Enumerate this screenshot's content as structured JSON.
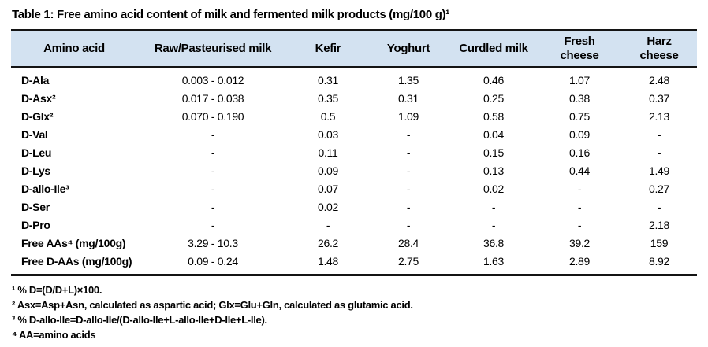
{
  "title": "Table 1: Free amino acid content of milk and fermented milk products (mg/100 g)¹",
  "table": {
    "columns": [
      "Amino acid",
      "Raw/Pasteurised milk",
      "Kefir",
      "Yoghurt",
      "Curdled milk",
      "Fresh\ncheese",
      "Harz\ncheese"
    ],
    "rows": [
      [
        "D-Ala",
        "0.003 - 0.012",
        "0.31",
        "1.35",
        "0.46",
        "1.07",
        "2.48"
      ],
      [
        "D-Asx²",
        "0.017 - 0.038",
        "0.35",
        "0.31",
        "0.25",
        "0.38",
        "0.37"
      ],
      [
        "D-Glx²",
        "0.070 - 0.190",
        "0.5",
        "1.09",
        "0.58",
        "0.75",
        "2.13"
      ],
      [
        "D-Val",
        "-",
        "0.03",
        "-",
        "0.04",
        "0.09",
        "-"
      ],
      [
        "D-Leu",
        "-",
        "0.11",
        "-",
        "0.15",
        "0.16",
        "-"
      ],
      [
        "D-Lys",
        "-",
        "0.09",
        "-",
        "0.13",
        "0.44",
        "1.49"
      ],
      [
        "D-allo-Ile³",
        "-",
        "0.07",
        "-",
        "0.02",
        "-",
        "0.27"
      ],
      [
        "D-Ser",
        "-",
        "0.02",
        "-",
        "-",
        "-",
        "-"
      ],
      [
        "D-Pro",
        "-",
        "-",
        "-",
        "-",
        "-",
        "2.18"
      ],
      [
        "Free AAs⁴ (mg/100g)",
        "3.29 - 10.3",
        "26.2",
        "28.4",
        "36.8",
        "39.2",
        "159"
      ],
      [
        "Free D-AAs (mg/100g)",
        "0.09 - 0.24",
        "1.48",
        "2.75",
        "1.63",
        "2.89",
        "8.92"
      ]
    ]
  },
  "footnotes": [
    "¹ % D=(D/D+L)×100.",
    "² Asx=Asp+Asn, calculated as aspartic acid; Glx=Glu+Gln, calculated as glutamic acid.",
    "³ % D-allo-Ile=D-allo-Ile/(D-allo-Ile+L-allo-Ile+D-Ile+L-Ile).",
    "⁴ AA=amino acids"
  ],
  "colors": {
    "header_background": "#d3e2f1",
    "rule": "#141414",
    "text": "#000000",
    "page_background": "#ffffff"
  }
}
